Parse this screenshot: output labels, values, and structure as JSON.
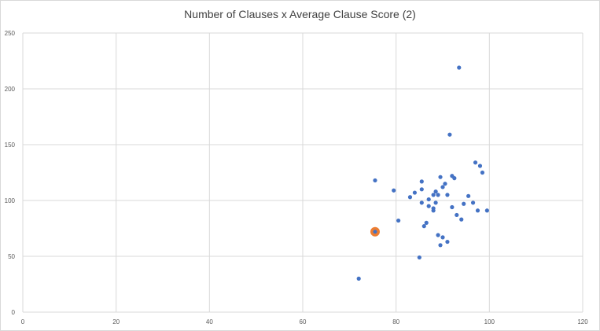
{
  "chart_data": {
    "type": "scatter",
    "title": "Number of Clauses x Average Clause Score (2)",
    "xlabel": "",
    "ylabel": "",
    "xlim": [
      0,
      120
    ],
    "ylim": [
      0,
      250
    ],
    "xticks": [
      "0",
      "20",
      "40",
      "60",
      "80",
      "100",
      "120"
    ],
    "yticks": [
      "0",
      "50",
      "100",
      "150",
      "200",
      "250"
    ],
    "grid": true,
    "legend": "none",
    "colors": {
      "points": "#4472c4",
      "highlight": "#ed7d31",
      "grid": "#d9d9d9"
    },
    "series": [
      {
        "points": [
          [
            72,
            30
          ],
          [
            75.5,
            118
          ],
          [
            79.5,
            109
          ],
          [
            80.5,
            82
          ],
          [
            83,
            103
          ],
          [
            84,
            107
          ],
          [
            85,
            49
          ],
          [
            85.5,
            117
          ],
          [
            85.5,
            110
          ],
          [
            85.5,
            98
          ],
          [
            86,
            77
          ],
          [
            86.5,
            80
          ],
          [
            87,
            95
          ],
          [
            87,
            101
          ],
          [
            88,
            91
          ],
          [
            88,
            93
          ],
          [
            88,
            105
          ],
          [
            88.5,
            98
          ],
          [
            88.5,
            108
          ],
          [
            89,
            69
          ],
          [
            89,
            105
          ],
          [
            89.5,
            60
          ],
          [
            89.5,
            121
          ],
          [
            90,
            67
          ],
          [
            90,
            112
          ],
          [
            90.5,
            115
          ],
          [
            91,
            105
          ],
          [
            91,
            63
          ],
          [
            91.5,
            159
          ],
          [
            92,
            122
          ],
          [
            92,
            94
          ],
          [
            92.5,
            120
          ],
          [
            93,
            87
          ],
          [
            93.5,
            219
          ],
          [
            94,
            83
          ],
          [
            94.5,
            97
          ],
          [
            95.5,
            104
          ],
          [
            96.5,
            98
          ],
          [
            97,
            134
          ],
          [
            97.5,
            91
          ],
          [
            98,
            131
          ],
          [
            98.5,
            125
          ],
          [
            99.5,
            91
          ]
        ]
      },
      {
        "highlight": true,
        "points": [
          [
            75.5,
            72
          ]
        ]
      }
    ]
  }
}
